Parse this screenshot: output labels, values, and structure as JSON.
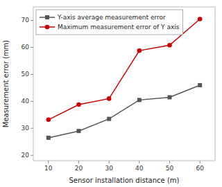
{
  "chart_data": {
    "type": "line",
    "xlabel": "Sensor installation distance (m)",
    "ylabel": "Measurement error (mm)",
    "x": [
      10,
      20,
      30,
      40,
      50,
      60
    ],
    "series": [
      {
        "name": "Y-axis average measurement error",
        "color": "#555555",
        "marker": "square",
        "values": [
          26.5,
          29.0,
          33.5,
          40.5,
          41.5,
          46.0
        ]
      },
      {
        "name": "Maximum measurement error of Y axis",
        "color": "#cc0000",
        "marker": "circle",
        "values": [
          33.2,
          38.8,
          41.0,
          58.8,
          60.8,
          70.5
        ]
      }
    ],
    "xlim": [
      5,
      65
    ],
    "ylim": [
      18,
      75
    ],
    "xticks": [
      10,
      20,
      30,
      40,
      50,
      60
    ],
    "yticks": [
      20,
      30,
      40,
      50,
      60,
      70
    ],
    "legend": "upper-left",
    "grid": false
  }
}
